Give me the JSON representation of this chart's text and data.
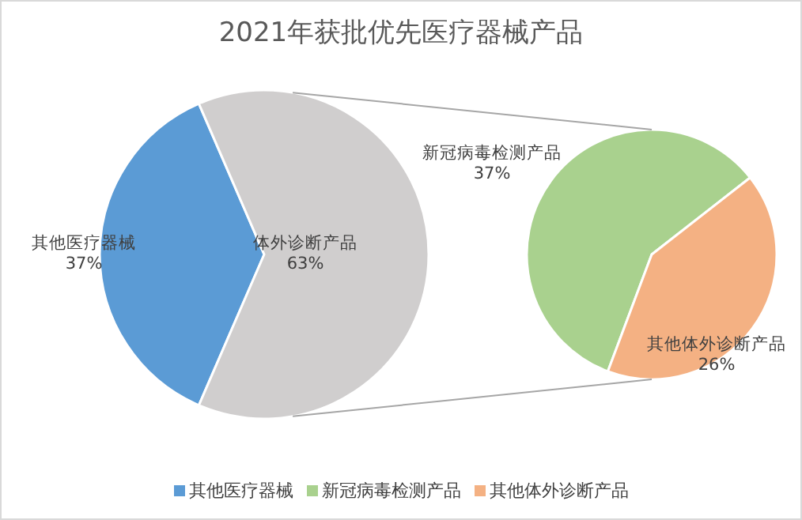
{
  "chart_data": [
    {
      "type": "pie",
      "title": "2021年获批优先医疗器械产品",
      "categories": [
        "其他医疗器械",
        "体外诊断产品"
      ],
      "values": [
        37,
        63
      ],
      "colors": [
        "#5b9bd5",
        "#d0cece"
      ],
      "value_labels": [
        "37%",
        "63%"
      ],
      "legend": "bottom"
    },
    {
      "type": "pie",
      "categories": [
        "新冠病毒检测产品",
        "其他体外诊断产品"
      ],
      "values": [
        37,
        26
      ],
      "colors": [
        "#a9d18e",
        "#f4b183"
      ],
      "value_labels": [
        "37%",
        "26%"
      ],
      "legend": "bottom"
    }
  ]
}
